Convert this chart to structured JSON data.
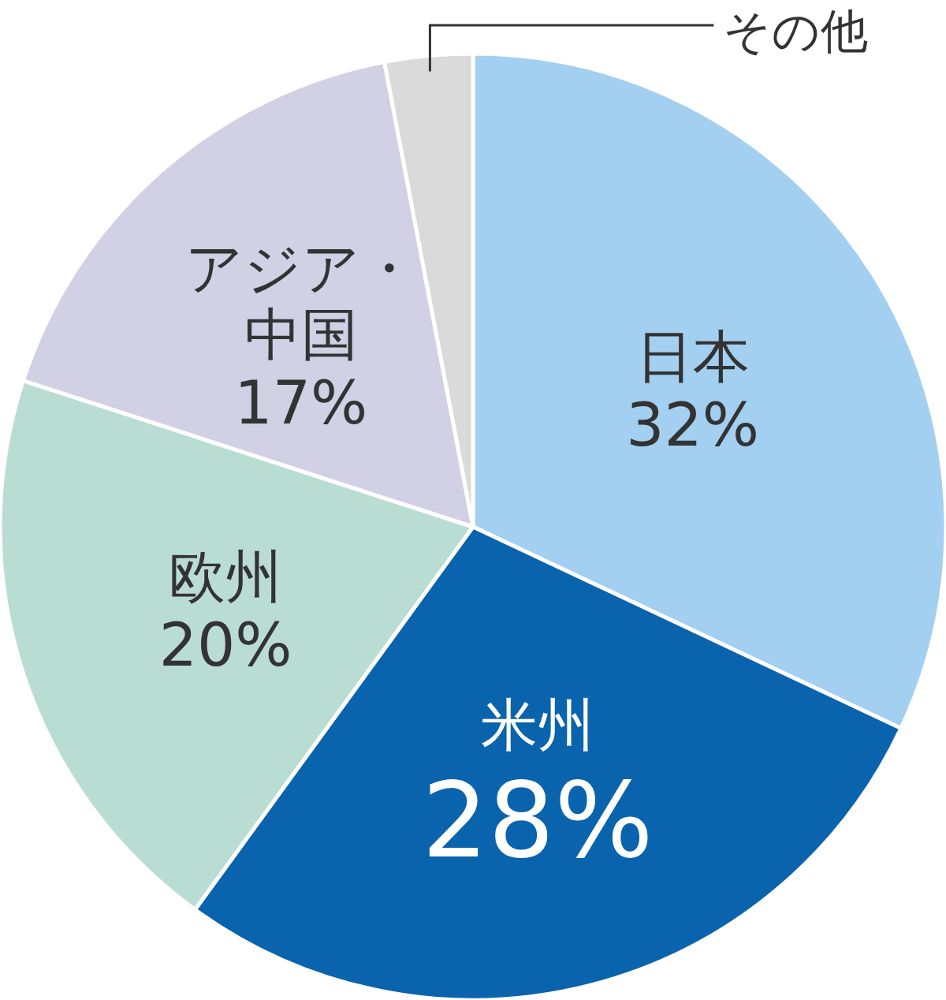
{
  "chart_data": {
    "type": "pie",
    "categories": [
      "日本",
      "米州",
      "欧州",
      "アジア・中国",
      "その他"
    ],
    "values": [
      32,
      28,
      20,
      17,
      3
    ],
    "colors": [
      "#a3cff0",
      "#0a63ad",
      "#b9ddd3",
      "#d1d0e4",
      "#dadada"
    ],
    "value_labels": [
      "32%",
      "28%",
      "20%",
      "17%",
      null
    ]
  }
}
